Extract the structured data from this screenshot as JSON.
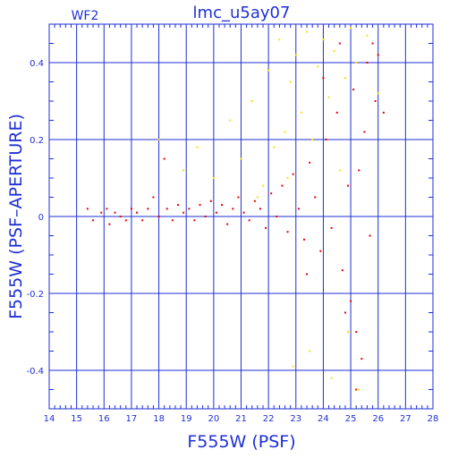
{
  "chart_data": {
    "type": "scatter",
    "title": "lmc_u5ay07",
    "panel_label": "WF2",
    "xlabel": "F555W (PSF)",
    "ylabel": "F555W (PSF–APERTURE)",
    "xlim": [
      14,
      28
    ],
    "ylim": [
      -0.5,
      0.5
    ],
    "x_ticks": [
      14,
      15,
      16,
      17,
      18,
      19,
      20,
      21,
      22,
      23,
      24,
      25,
      26,
      27,
      28
    ],
    "y_ticks": [
      -0.4,
      -0.2,
      0,
      0.2,
      0.4
    ],
    "y_tick_labels": [
      "-0.4",
      "-0.2",
      "0",
      "0.2",
      "0.4"
    ],
    "grid": true,
    "axis_color": "#1f2fd6",
    "series": [
      {
        "color": "#e80000",
        "points": [
          [
            15.4,
            0.02
          ],
          [
            15.6,
            -0.01
          ],
          [
            15.9,
            0.01
          ],
          [
            16.1,
            0.02
          ],
          [
            16.2,
            -0.02
          ],
          [
            16.4,
            0.01
          ],
          [
            16.6,
            0.0
          ],
          [
            16.8,
            -0.01
          ],
          [
            17.0,
            0.02
          ],
          [
            17.2,
            0.01
          ],
          [
            17.4,
            -0.01
          ],
          [
            17.6,
            0.02
          ],
          [
            17.8,
            0.05
          ],
          [
            18.0,
            0.0
          ],
          [
            18.2,
            0.15
          ],
          [
            18.3,
            0.02
          ],
          [
            18.5,
            -0.01
          ],
          [
            18.7,
            0.03
          ],
          [
            18.9,
            0.01
          ],
          [
            19.1,
            0.02
          ],
          [
            19.3,
            -0.01
          ],
          [
            19.5,
            0.03
          ],
          [
            19.7,
            0.0
          ],
          [
            19.9,
            0.04
          ],
          [
            20.1,
            0.01
          ],
          [
            20.3,
            0.03
          ],
          [
            20.5,
            -0.02
          ],
          [
            20.7,
            0.02
          ],
          [
            20.9,
            0.05
          ],
          [
            21.1,
            0.01
          ],
          [
            21.3,
            -0.01
          ],
          [
            21.5,
            0.04
          ],
          [
            21.7,
            0.02
          ],
          [
            21.9,
            -0.03
          ],
          [
            22.1,
            0.06
          ],
          [
            22.3,
            0.0
          ],
          [
            22.5,
            0.08
          ],
          [
            22.7,
            -0.04
          ],
          [
            22.9,
            0.11
          ],
          [
            23.1,
            0.02
          ],
          [
            23.3,
            -0.06
          ],
          [
            23.5,
            0.14
          ],
          [
            23.7,
            0.05
          ],
          [
            23.9,
            -0.09
          ],
          [
            24.1,
            0.2
          ],
          [
            24.3,
            -0.03
          ],
          [
            24.5,
            0.27
          ],
          [
            24.7,
            -0.14
          ],
          [
            24.9,
            0.08
          ],
          [
            25.0,
            -0.22
          ],
          [
            25.1,
            0.33
          ],
          [
            25.2,
            -0.3
          ],
          [
            25.3,
            0.12
          ],
          [
            25.4,
            -0.37
          ],
          [
            25.5,
            0.22
          ],
          [
            25.6,
            0.4
          ],
          [
            25.7,
            -0.05
          ],
          [
            25.8,
            0.45
          ],
          [
            25.9,
            0.3
          ],
          [
            26.0,
            0.42
          ],
          [
            26.2,
            0.27
          ],
          [
            23.4,
            -0.15
          ],
          [
            24.0,
            0.36
          ],
          [
            24.6,
            0.45
          ],
          [
            25.2,
            -0.45
          ],
          [
            24.8,
            -0.25
          ]
        ]
      },
      {
        "color": "#ffe000",
        "points": [
          [
            18.0,
            0.2
          ],
          [
            18.9,
            0.12
          ],
          [
            19.4,
            0.18
          ],
          [
            20.0,
            0.1
          ],
          [
            20.6,
            0.25
          ],
          [
            21.0,
            0.15
          ],
          [
            21.4,
            0.3
          ],
          [
            21.8,
            0.08
          ],
          [
            22.0,
            0.38
          ],
          [
            22.2,
            0.18
          ],
          [
            22.4,
            0.46
          ],
          [
            22.6,
            0.22
          ],
          [
            22.8,
            0.35
          ],
          [
            23.0,
            0.42
          ],
          [
            23.2,
            0.27
          ],
          [
            23.4,
            0.48
          ],
          [
            23.6,
            0.2
          ],
          [
            23.8,
            0.39
          ],
          [
            24.0,
            0.46
          ],
          [
            24.2,
            0.31
          ],
          [
            24.4,
            0.43
          ],
          [
            24.6,
            0.12
          ],
          [
            24.8,
            0.36
          ],
          [
            25.0,
            0.49
          ],
          [
            25.2,
            0.4
          ],
          [
            25.6,
            0.47
          ],
          [
            26.0,
            0.32
          ],
          [
            23.5,
            -0.35
          ],
          [
            24.3,
            -0.42
          ],
          [
            22.9,
            -0.39
          ],
          [
            24.9,
            -0.3
          ],
          [
            25.3,
            -0.45
          ],
          [
            21.6,
            0.05
          ],
          [
            22.7,
            0.1
          ]
        ]
      }
    ]
  }
}
